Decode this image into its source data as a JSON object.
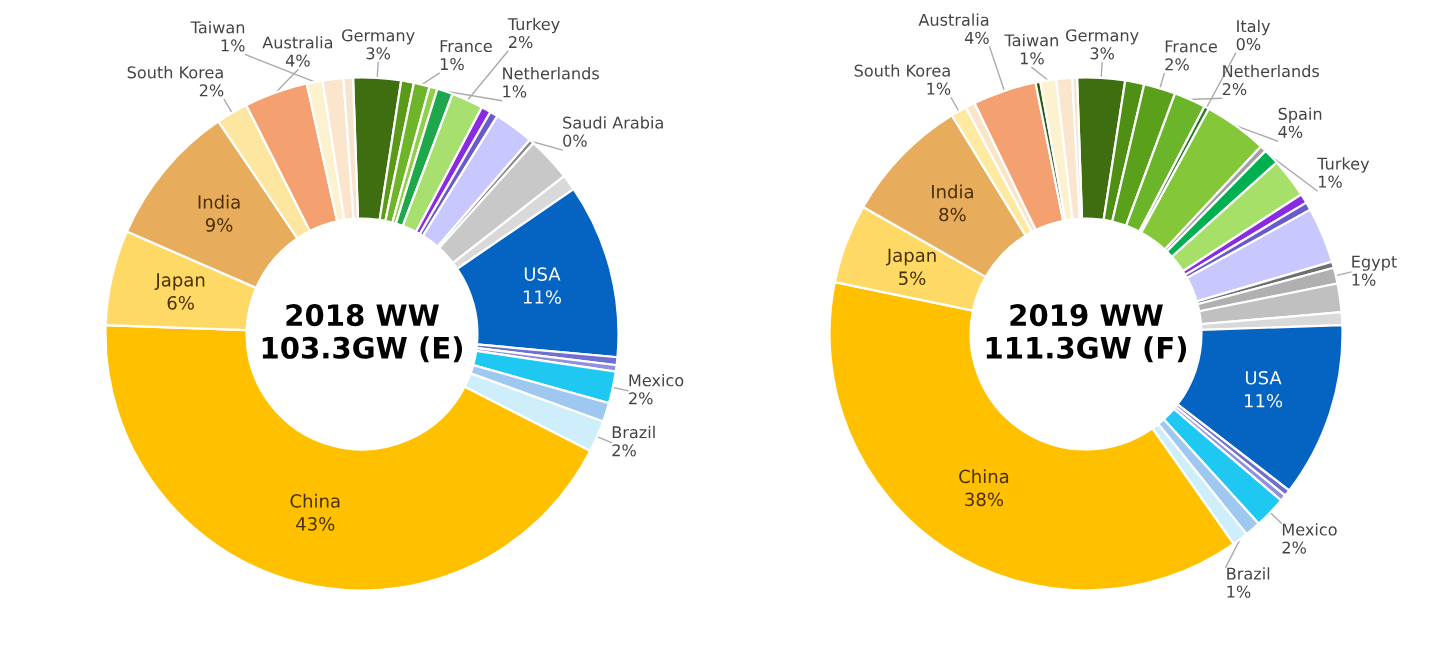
{
  "chart_data": [
    {
      "type": "donut",
      "title": "2018 WW\n103.3GW (E)",
      "categories": [
        "Germany",
        null,
        "France",
        null,
        "Netherlands",
        "Turkey",
        null,
        null,
        null,
        "Saudi Arabia",
        null,
        null,
        "USA",
        null,
        null,
        "Mexico",
        null,
        "Brazil",
        "China",
        "Japan",
        "India",
        "South Korea",
        "Australia",
        "Taiwan",
        null,
        null
      ],
      "values": [
        3,
        0.8,
        1,
        0.5,
        1,
        2,
        0.6,
        0.5,
        2.5,
        0.3,
        2.8,
        1.0,
        11,
        0.5,
        0.4,
        2,
        1.2,
        2,
        43,
        6,
        9,
        2,
        4,
        1,
        1.3,
        0.6
      ],
      "value_labels": [
        "3%",
        null,
        "1%",
        null,
        "1%",
        "2%",
        null,
        null,
        null,
        "0%",
        null,
        null,
        "11%",
        null,
        null,
        "2%",
        null,
        "2%",
        "43%",
        "6%",
        "9%",
        "2%",
        "4%",
        "1%",
        null,
        null
      ],
      "colors": [
        "#3f6e10",
        "#5a9a18",
        "#6fb52a",
        "#8fcf4a",
        "#1ea84b",
        "#a8e070",
        "#8a2be2",
        "#6a5acd",
        "#c8c8ff",
        "#888888",
        "#c8c8c8",
        "#d9d9d9",
        "#0563c1",
        "#7070d0",
        "#9090e0",
        "#1ec8f0",
        "#9fc8f0",
        "#cdeefa",
        "#ffc000",
        "#ffd966",
        "#e8ad5c",
        "#fde7a0",
        "#f4a070",
        "#fdf2d0",
        "#fbe5cc",
        "#f5e5d0"
      ]
    },
    {
      "type": "donut",
      "title": "2019 WW\n111.3GW (F)",
      "categories": [
        "Germany",
        null,
        "France",
        "Netherlands",
        "Italy",
        "Spain",
        null,
        "Turkey",
        null,
        null,
        null,
        null,
        null,
        "Egypt",
        null,
        null,
        "USA",
        null,
        null,
        "Mexico",
        null,
        "Brazil",
        "China",
        "Japan",
        "India",
        "South Korea",
        null,
        "Australia",
        null,
        "Taiwan",
        null,
        null
      ],
      "values": [
        3,
        1.2,
        2,
        2,
        0.3,
        4,
        0.4,
        1,
        2.5,
        0.6,
        0.5,
        3.5,
        0.4,
        1,
        1.8,
        0.8,
        11,
        0.4,
        0.4,
        2,
        1.0,
        1,
        38,
        5,
        8,
        1,
        0.6,
        4,
        0.3,
        1,
        1.0,
        0.3
      ],
      "value_labels": [
        "3%",
        null,
        "2%",
        "2%",
        "0%",
        "4%",
        null,
        "1%",
        null,
        null,
        null,
        null,
        null,
        "1%",
        null,
        null,
        "11%",
        null,
        null,
        "2%",
        null,
        "1%",
        "38%",
        "5%",
        "8%",
        "1%",
        null,
        "4%",
        null,
        "1%",
        null,
        null
      ],
      "colors": [
        "#3f6e10",
        "#4f8f14",
        "#5aa01a",
        "#6ab52a",
        "#2a7a2a",
        "#84c83a",
        "#a0a0a0",
        "#00b050",
        "#a6e068",
        "#8a2be2",
        "#6a5acd",
        "#c8c8ff",
        "#707070",
        "#b0b0b0",
        "#c0c0c0",
        "#d9d9d9",
        "#0563c1",
        "#7070d0",
        "#9090e0",
        "#1ec8f0",
        "#9fc8f0",
        "#cdeefa",
        "#ffc000",
        "#ffd966",
        "#e8ad5c",
        "#fde9a0",
        "#fbe5c8",
        "#f4a070",
        "#2a5a10",
        "#fdf2d0",
        "#fbe5cc",
        "#f5e5d0"
      ]
    }
  ]
}
